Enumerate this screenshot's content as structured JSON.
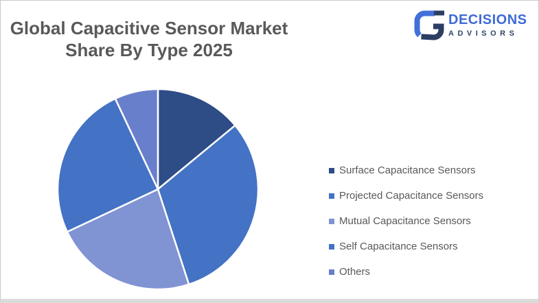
{
  "page": {
    "title_line1": "Global Capacitive Sensor Market",
    "title_line2": "Share By Type 2025",
    "title_color": "#595959",
    "background_color": "#ffffff",
    "border_color": "#c9c9c9"
  },
  "logo": {
    "name": "DECISIONS",
    "subname": "ADVISORS",
    "name_color": "#3e6ad6",
    "subname_color": "#2e4468",
    "mark_blue": "#4170d8",
    "mark_navy": "#2b3e63",
    "icon": "stylized-g-mark"
  },
  "chart_data": {
    "type": "pie",
    "title": "Global Capacitive Sensor Market Share By Type 2025",
    "start_angle_deg_from_top": 0,
    "direction": "clockwise",
    "values_are_estimated_from_slice_angles": true,
    "slice_border_color": "#ffffff",
    "legend_position": "right",
    "series": [
      {
        "name": "Surface Capacitance Sensors",
        "value": 14,
        "color": "#2e4c86"
      },
      {
        "name": "Projected Capacitance Sensors",
        "value": 31,
        "color": "#4472c4"
      },
      {
        "name": "Mutual Capacitance Sensors",
        "value": 23,
        "color": "#8093d3"
      },
      {
        "name": "Self Capacitance Sensors",
        "value": 25,
        "color": "#4472c4"
      },
      {
        "name": "Others",
        "value": 7,
        "color": "#687fcb"
      }
    ]
  }
}
